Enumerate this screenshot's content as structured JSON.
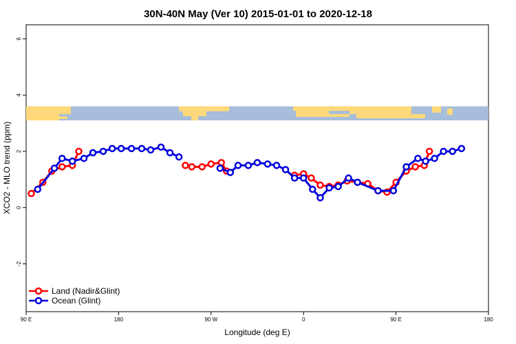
{
  "chart_data": {
    "type": "line",
    "title": "30N-40N May (Ver 10)   2015-01-01 to 2020-12-18",
    "xlabel": "Longitude (deg E)",
    "ylabel": "XCO2 - MLO trend (ppm)",
    "xlim": [
      90,
      450
    ],
    "ylim": [
      -3.7,
      6.5
    ],
    "x_ticks": [
      {
        "value": 90,
        "label": "90 E"
      },
      {
        "value": 162,
        "label": "180"
      },
      {
        "value": 234,
        "label": "90 W"
      },
      {
        "value": 306,
        "label": "0"
      },
      {
        "value": 378,
        "label": "90 E"
      },
      {
        "value": 450,
        "label": "180"
      }
    ],
    "y_ticks": [
      {
        "value": -2,
        "label": "-2"
      },
      {
        "value": 0,
        "label": "0"
      },
      {
        "value": 2,
        "label": "2"
      },
      {
        "value": 4,
        "label": "4"
      },
      {
        "value": 6,
        "label": "6"
      }
    ],
    "land_band": {
      "ymin": 3.1,
      "ymax": 3.6
    },
    "grid": false,
    "legend_position": "bottom-left",
    "series": [
      {
        "name": "Land (Nadir&Glint)",
        "color": "#ff0000",
        "segments": [
          [
            [
              94,
              0.5
            ],
            [
              103,
              0.9
            ],
            [
              110,
              1.3
            ],
            [
              118,
              1.45
            ],
            [
              126,
              1.5
            ],
            [
              131,
              2.0
            ]
          ],
          [
            [
              214,
              1.5
            ],
            [
              219,
              1.45
            ],
            [
              227,
              1.45
            ],
            [
              234,
              1.55
            ],
            [
              242,
              1.6
            ],
            [
              246,
              1.3
            ]
          ],
          [
            [
              299,
              1.15
            ],
            [
              306,
              1.2
            ],
            [
              312,
              1.05
            ],
            [
              319,
              0.8
            ],
            [
              326,
              0.75
            ],
            [
              333,
              0.8
            ],
            [
              340,
              0.95
            ],
            [
              348,
              0.9
            ],
            [
              356,
              0.85
            ],
            [
              364,
              0.6
            ],
            [
              371,
              0.55
            ],
            [
              378,
              0.9
            ],
            [
              386,
              1.3
            ],
            [
              393,
              1.45
            ],
            [
              400,
              1.5
            ],
            [
              404,
              2.0
            ]
          ]
        ]
      },
      {
        "name": "Ocean (Glint)",
        "color": "#0000dd",
        "segments": [
          [
            [
              99,
              0.65
            ],
            [
              112,
              1.4
            ],
            [
              118,
              1.75
            ],
            [
              126,
              1.65
            ],
            [
              135,
              1.75
            ],
            [
              142,
              1.95
            ],
            [
              150,
              2.0
            ],
            [
              157,
              2.1
            ],
            [
              164,
              2.1
            ],
            [
              172,
              2.1
            ],
            [
              180,
              2.1
            ],
            [
              187,
              2.05
            ],
            [
              195,
              2.15
            ],
            [
              202,
              1.95
            ],
            [
              209,
              1.8
            ]
          ],
          [
            [
              241,
              1.4
            ],
            [
              249,
              1.25
            ],
            [
              255,
              1.5
            ],
            [
              263,
              1.5
            ],
            [
              270,
              1.6
            ],
            [
              278,
              1.55
            ],
            [
              285,
              1.5
            ],
            [
              292,
              1.35
            ],
            [
              299,
              1.05
            ],
            [
              306,
              1.05
            ],
            [
              313,
              0.65
            ],
            [
              319,
              0.35
            ],
            [
              326,
              0.7
            ],
            [
              333,
              0.75
            ],
            [
              341,
              1.05
            ],
            [
              348,
              0.9
            ],
            [
              364,
              0.6
            ],
            [
              376,
              0.6
            ],
            [
              386,
              1.45
            ],
            [
              395,
              1.75
            ],
            [
              401,
              1.65
            ],
            [
              408,
              1.75
            ],
            [
              415,
              2.0
            ],
            [
              422,
              2.0
            ],
            [
              429,
              2.1
            ]
          ]
        ]
      }
    ]
  }
}
